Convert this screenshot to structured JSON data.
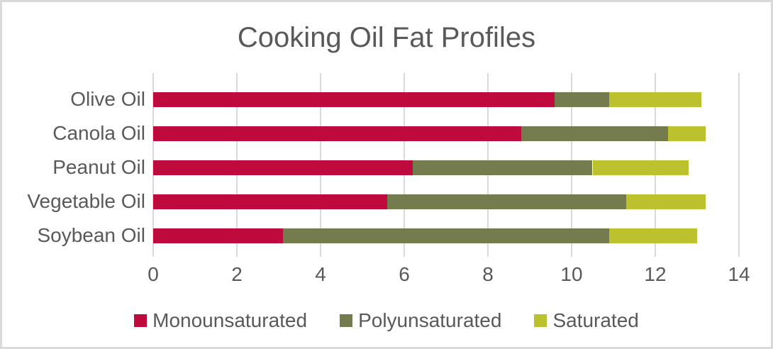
{
  "chart_data": {
    "type": "bar",
    "orientation": "horizontal-stacked",
    "title": "Cooking Oil Fat Profiles",
    "categories": [
      "Olive Oil",
      "Canola Oil",
      "Peanut Oil",
      "Vegetable Oil",
      "Soybean Oil"
    ],
    "series": [
      {
        "name": "Monounsaturated",
        "color": "#BE0A3C",
        "values": [
          9.6,
          8.8,
          6.2,
          5.6,
          3.1
        ]
      },
      {
        "name": "Polyunsaturated",
        "color": "#747B4D",
        "values": [
          1.3,
          3.5,
          4.3,
          5.7,
          7.8
        ]
      },
      {
        "name": "Saturated",
        "color": "#BBC22D",
        "values": [
          2.2,
          0.9,
          2.3,
          1.9,
          2.1
        ]
      }
    ],
    "xlabel": "",
    "ylabel": "",
    "xlim": [
      0,
      14
    ],
    "xticks": [
      "0",
      "2",
      "4",
      "6",
      "8",
      "10",
      "12",
      "14"
    ],
    "grid": "vertical",
    "legend_position": "bottom",
    "colors": {
      "text": "#595959",
      "gridline": "#D9D9D9",
      "frame_border": "#D9D9D9",
      "background": "#FFFFFF"
    }
  }
}
